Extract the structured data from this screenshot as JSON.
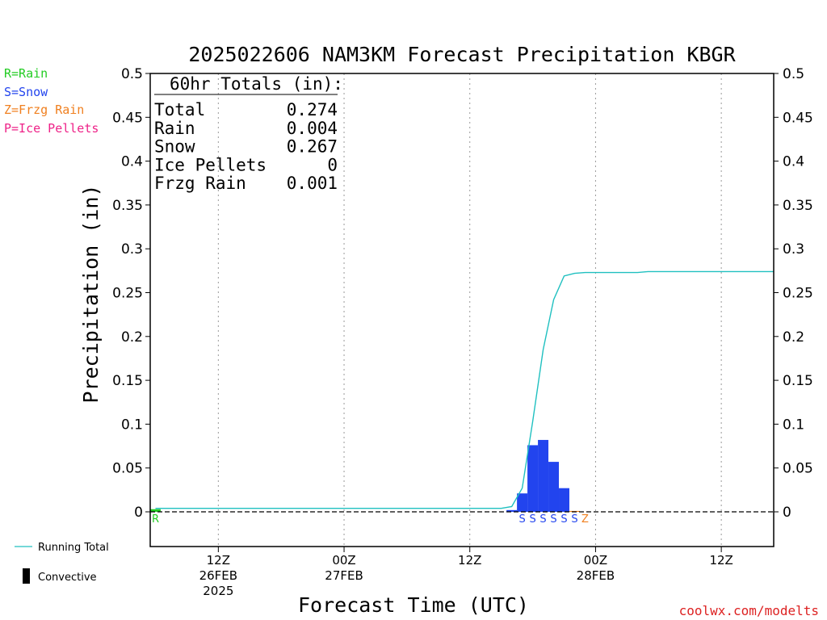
{
  "title": "2025022606 NAM3KM Forecast Precipitation KBGR",
  "colors": {
    "rain": "#22cc22",
    "snow": "#2244ee",
    "frzg_rain": "#f08020",
    "ice_pellets": "#ee2288",
    "running_total": "#20c0c0",
    "convective": "#000000",
    "credit": "#dd2222"
  },
  "legend": {
    "rain": "R=Rain",
    "snow": "S=Snow",
    "frzg_rain": "Z=Frzg Rain",
    "ice_pellets": "P=Ice Pellets",
    "running_total": "Running Total",
    "convective": "Convective"
  },
  "totals": {
    "heading": "60hr Totals (in):",
    "rows": [
      {
        "label": "Total",
        "value": "0.274"
      },
      {
        "label": "Rain",
        "value": "0.004"
      },
      {
        "label": "Snow",
        "value": "0.267"
      },
      {
        "label": "Ice Pellets",
        "value": "0"
      },
      {
        "label": "Frzg Rain",
        "value": "0.001"
      }
    ]
  },
  "credit": "coolwx.com/modelts",
  "chart_data": {
    "type": "bar",
    "title": "2025022606 NAM3KM Forecast Precipitation KBGR",
    "xlabel": "Forecast Time (UTC)",
    "ylabel": "Precipitation (in)",
    "ylim": [
      0,
      0.5
    ],
    "y_ticks": [
      "0",
      "0.05",
      "0.1",
      "0.15",
      "0.2",
      "0.25",
      "0.3",
      "0.35",
      "0.4",
      "0.45",
      "0.5"
    ],
    "xlim_hours": [
      -0.5,
      59
    ],
    "x_ticks": [
      {
        "hour": 6,
        "lines": [
          "12Z",
          "26FEB",
          "2025"
        ]
      },
      {
        "hour": 18,
        "lines": [
          "00Z",
          "27FEB"
        ]
      },
      {
        "hour": 30,
        "lines": [
          "12Z"
        ]
      },
      {
        "hour": 42,
        "lines": [
          "00Z",
          "28FEB"
        ]
      },
      {
        "hour": 54,
        "lines": [
          "12Z"
        ]
      }
    ],
    "grid": "vertical dotted at tick times",
    "series": [
      {
        "name": "Hourly precipitation",
        "bars": [
          {
            "hour": 0,
            "value": 0.003,
            "type": "R"
          },
          {
            "hour": 34,
            "value": 0.002,
            "type": "S"
          },
          {
            "hour": 35,
            "value": 0.021,
            "type": "S"
          },
          {
            "hour": 36,
            "value": 0.076,
            "type": "S"
          },
          {
            "hour": 37,
            "value": 0.082,
            "type": "S"
          },
          {
            "hour": 38,
            "value": 0.057,
            "type": "S"
          },
          {
            "hour": 39,
            "value": 0.027,
            "type": "S"
          },
          {
            "hour": 40,
            "value": 0.001,
            "type": "Z"
          }
        ]
      },
      {
        "name": "Running Total",
        "hours": [
          0,
          33,
          34,
          35,
          36,
          37,
          38,
          39,
          40,
          41,
          46,
          47,
          59
        ],
        "values": [
          0.004,
          0.004,
          0.006,
          0.027,
          0.103,
          0.185,
          0.242,
          0.269,
          0.272,
          0.273,
          0.273,
          0.274,
          0.274
        ]
      }
    ],
    "precip_type_labels": [
      {
        "hour": 0,
        "type": "R"
      },
      {
        "hour": 35,
        "type": "S"
      },
      {
        "hour": 36,
        "type": "S"
      },
      {
        "hour": 37,
        "type": "S"
      },
      {
        "hour": 38,
        "type": "S"
      },
      {
        "hour": 39,
        "type": "S"
      },
      {
        "hour": 40,
        "type": "S"
      },
      {
        "hour": 41,
        "type": "Z"
      }
    ]
  }
}
